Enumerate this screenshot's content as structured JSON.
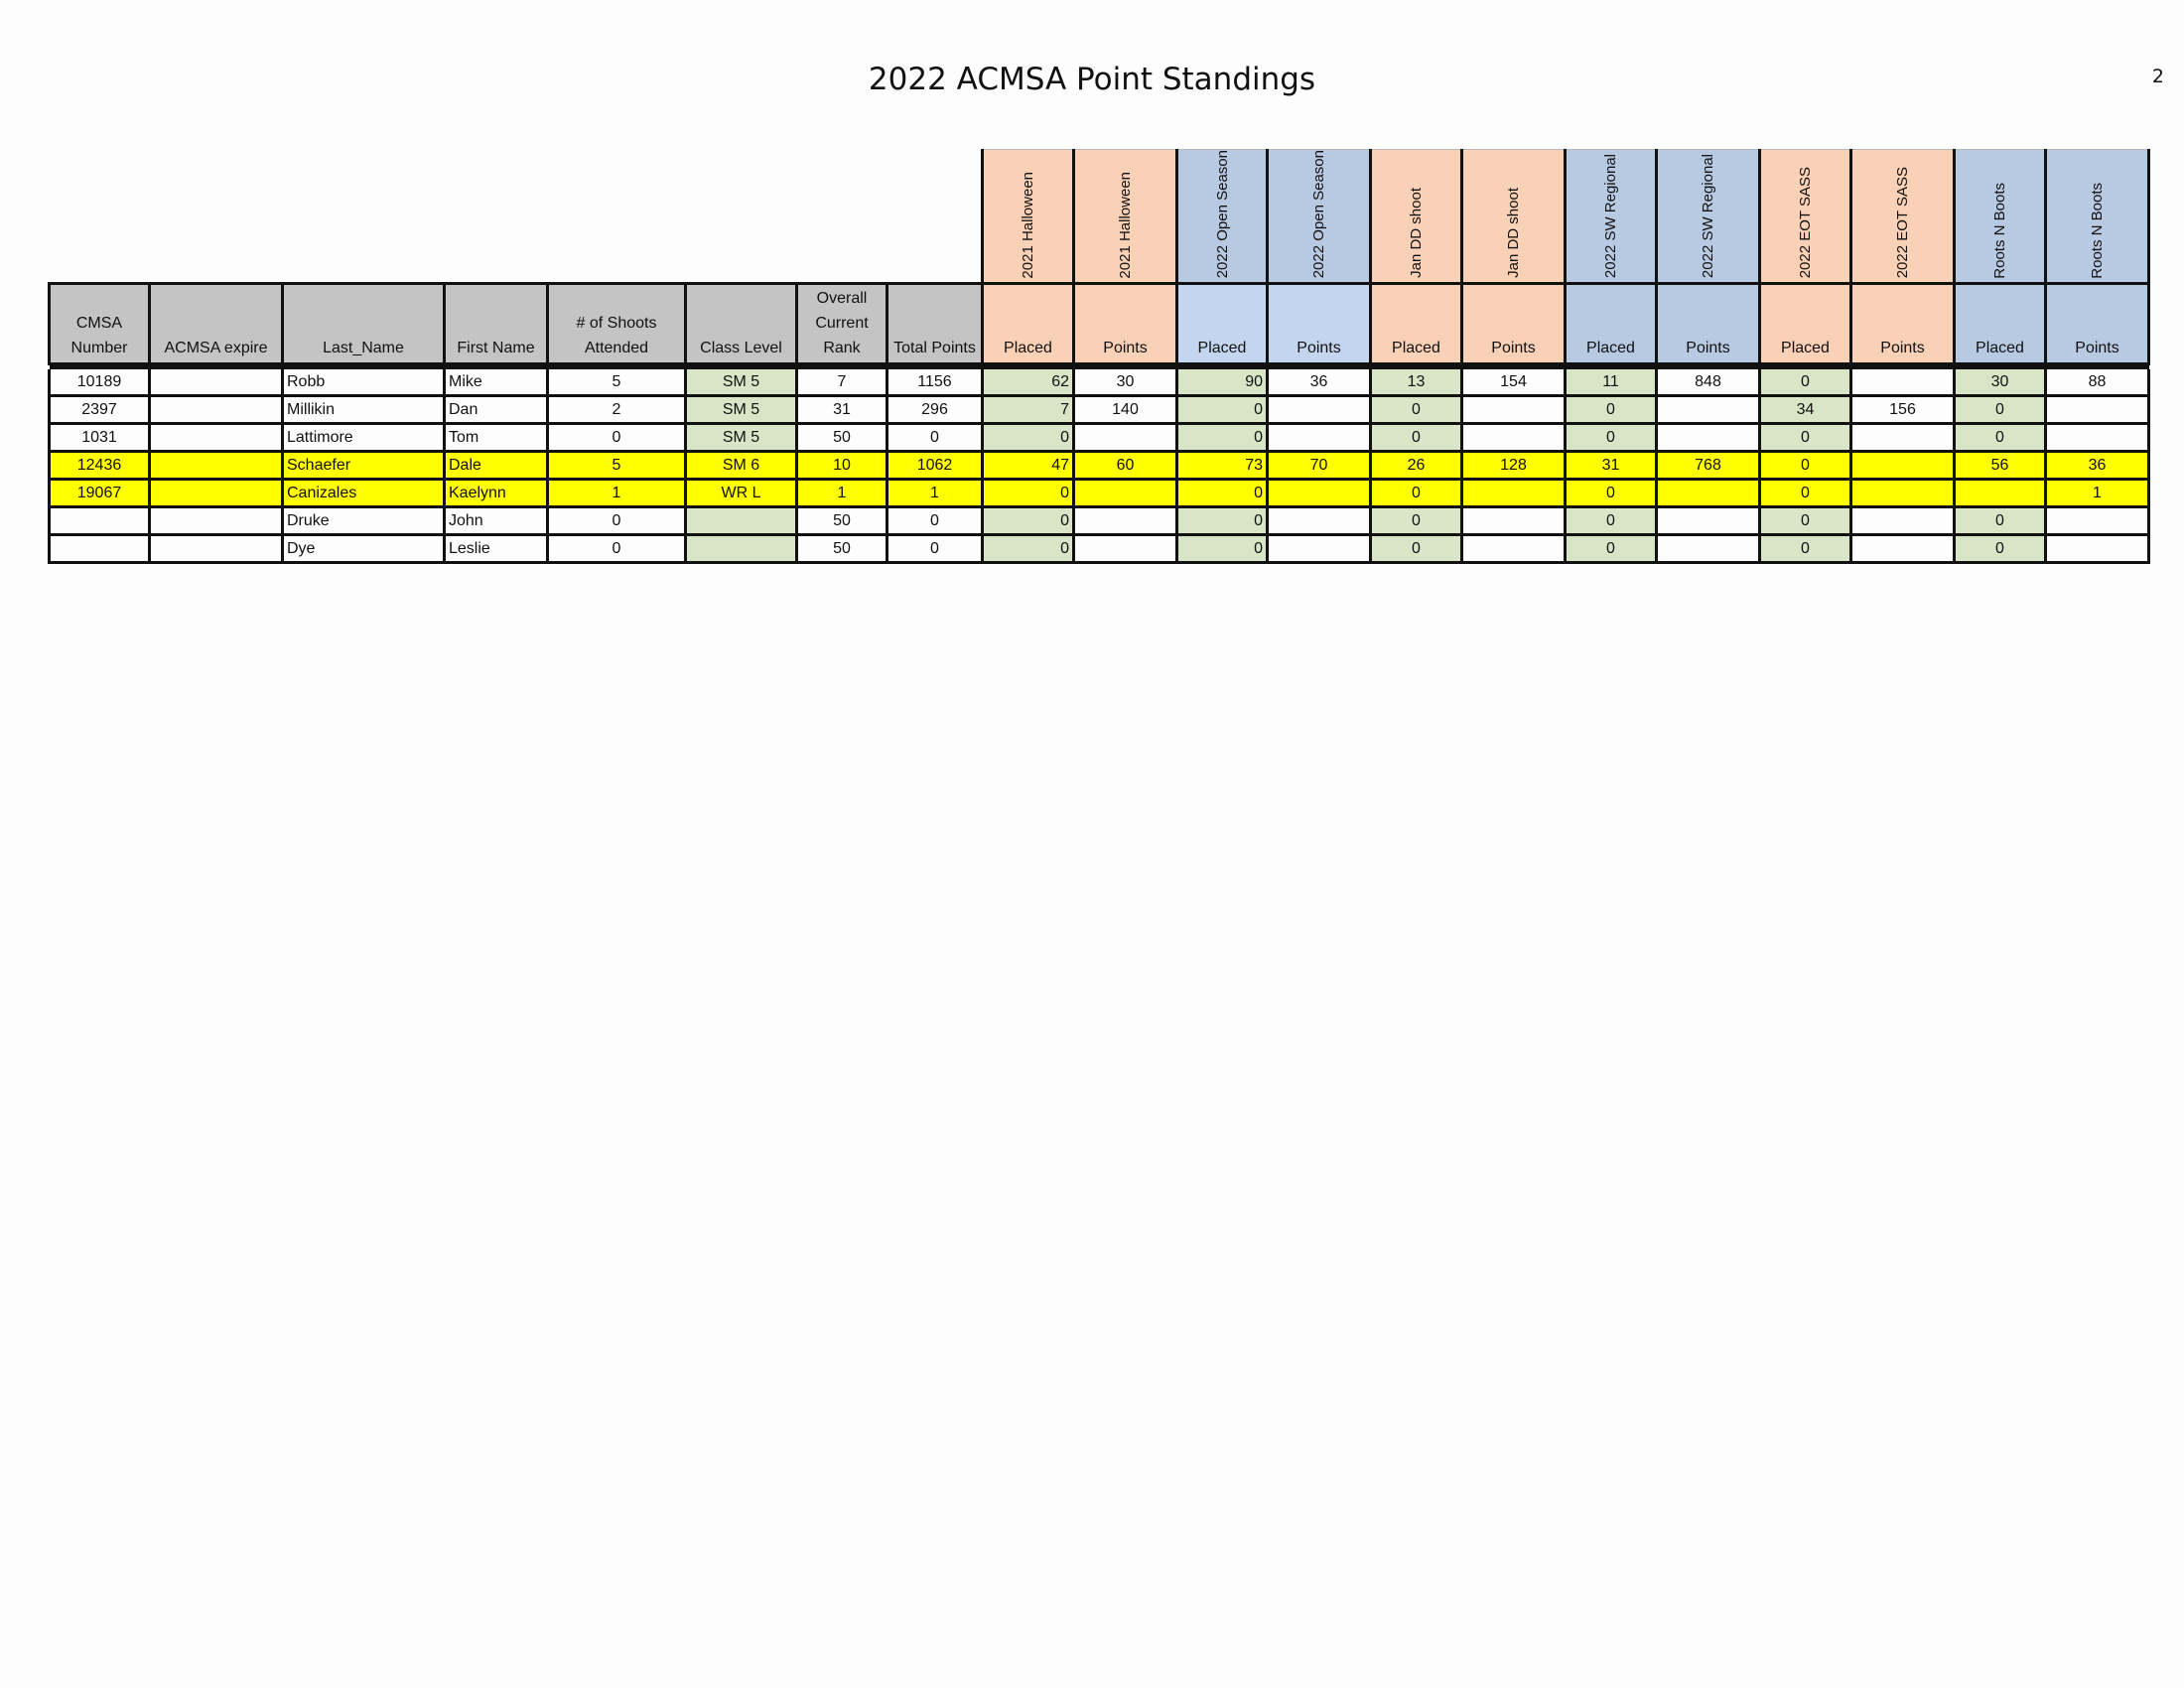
{
  "page": {
    "title": "2022 ACMSA Point Standings",
    "page_number": "2"
  },
  "headers": {
    "cmsa_number": "CMSA Number",
    "acmsa_expire": "ACMSA expire",
    "last_name": "Last_Name",
    "first_name": "First Name",
    "shoots_attended": "# of Shoots Attended",
    "class_level": "Class  Level",
    "overall_rank": "Overall Current Rank",
    "total_points": "Total Points",
    "placed": "Placed",
    "points": "Points"
  },
  "events": [
    {
      "placed_label": "2021 Halloween",
      "points_label": "2021 Halloween",
      "color": "#f9d1b6"
    },
    {
      "placed_label": "2022 Open Season",
      "points_label": "2022 Open Season",
      "color": "#b8c9e2"
    },
    {
      "placed_label": "Jan DD shoot",
      "points_label": "Jan DD shoot",
      "color": "#f9d1b6"
    },
    {
      "placed_label": "2022 SW Regional",
      "points_label": "2022 SW Regional",
      "color": "#b8c9e2"
    },
    {
      "placed_label": "2022 EOT SASS",
      "points_label": "2022 EOT SASS",
      "color": "#f9d1b6"
    },
    {
      "placed_label": "Roots N Boots",
      "points_label": "Roots N Boots",
      "color": "#b8c9e2"
    }
  ],
  "rows": [
    {
      "cmsa": "10189",
      "expire": "",
      "last": "Robb",
      "first": "Mike",
      "shoots": "5",
      "class": "SM  5",
      "rank": "7",
      "total": "1156",
      "e1_placed": "62",
      "e1_points": "30",
      "e2_placed": "90",
      "e2_points": "36",
      "e3_placed": "13",
      "e3_points": "154",
      "e4_placed": "11",
      "e4_points": "848",
      "e5_placed": "0",
      "e5_points": "",
      "e6_placed": "30",
      "e6_points": "88",
      "highlight": false
    },
    {
      "cmsa": "2397",
      "expire": "",
      "last": "Millikin",
      "first": "Dan",
      "shoots": "2",
      "class": "SM  5",
      "rank": "31",
      "total": "296",
      "e1_placed": "7",
      "e1_points": "140",
      "e2_placed": "0",
      "e2_points": "",
      "e3_placed": "0",
      "e3_points": "",
      "e4_placed": "0",
      "e4_points": "",
      "e5_placed": "34",
      "e5_points": "156",
      "e6_placed": "0",
      "e6_points": "",
      "highlight": false
    },
    {
      "cmsa": "1031",
      "expire": "",
      "last": "Lattimore",
      "first": "Tom",
      "shoots": "0",
      "class": "SM  5",
      "rank": "50",
      "total": "0",
      "e1_placed": "0",
      "e1_points": "",
      "e2_placed": "0",
      "e2_points": "",
      "e3_placed": "0",
      "e3_points": "",
      "e4_placed": "0",
      "e4_points": "",
      "e5_placed": "0",
      "e5_points": "",
      "e6_placed": "0",
      "e6_points": "",
      "highlight": false
    },
    {
      "cmsa": "12436",
      "expire": "",
      "last": "Schaefer",
      "first": "Dale",
      "shoots": "5",
      "class": "SM  6",
      "rank": "10",
      "total": "1062",
      "e1_placed": "47",
      "e1_points": "60",
      "e2_placed": "73",
      "e2_points": "70",
      "e3_placed": "26",
      "e3_points": "128",
      "e4_placed": "31",
      "e4_points": "768",
      "e5_placed": "0",
      "e5_points": "",
      "e6_placed": "56",
      "e6_points": "36",
      "highlight": true
    },
    {
      "cmsa": "19067",
      "expire": "",
      "last": "Canizales",
      "first": "Kaelynn",
      "shoots": "1",
      "class": "WR  L",
      "rank": "1",
      "total": "1",
      "e1_placed": "0",
      "e1_points": "",
      "e2_placed": "0",
      "e2_points": "",
      "e3_placed": "0",
      "e3_points": "",
      "e4_placed": "0",
      "e4_points": "",
      "e5_placed": "0",
      "e5_points": "",
      "e6_placed": "",
      "e6_points": "1",
      "highlight": true
    },
    {
      "cmsa": "",
      "expire": "",
      "last": "Druke",
      "first": "John",
      "shoots": "0",
      "class": "",
      "rank": "50",
      "total": "0",
      "e1_placed": "0",
      "e1_points": "",
      "e2_placed": "0",
      "e2_points": "",
      "e3_placed": "0",
      "e3_points": "",
      "e4_placed": "0",
      "e4_points": "",
      "e5_placed": "0",
      "e5_points": "",
      "e6_placed": "0",
      "e6_points": "",
      "highlight": false
    },
    {
      "cmsa": "",
      "expire": "",
      "last": "Dye",
      "first": "Leslie",
      "shoots": "0",
      "class": "",
      "rank": "50",
      "total": "0",
      "e1_placed": "0",
      "e1_points": "",
      "e2_placed": "0",
      "e2_points": "",
      "e3_placed": "0",
      "e3_points": "",
      "e4_placed": "0",
      "e4_points": "",
      "e5_placed": "0",
      "e5_points": "",
      "e6_placed": "0",
      "e6_points": "",
      "highlight": false
    }
  ]
}
